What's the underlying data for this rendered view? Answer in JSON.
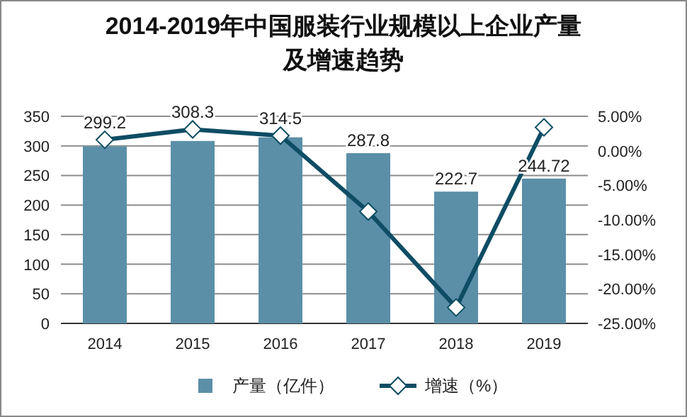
{
  "chart_data": {
    "type": "bar",
    "title": "2014-2019年中国服装行业规模以上企业产量及增速趋势",
    "categories": [
      "2014",
      "2015",
      "2016",
      "2017",
      "2018",
      "2019"
    ],
    "series": [
      {
        "name": "产量（亿件）",
        "color": "#5b8fa8",
        "values": [
          299.2,
          308.3,
          314.5,
          287.8,
          222.7,
          244.72
        ],
        "value_labels": [
          "299.2",
          "308.3",
          "314.5",
          "287.8",
          "222.7",
          "244.72"
        ]
      },
      {
        "name": "增速（%）",
        "type": "line",
        "axis": "y2",
        "color": "#0e4d64",
        "marker": "diamond",
        "values": [
          1.6,
          3.1,
          2.2,
          -8.8,
          -22.7,
          3.4
        ]
      }
    ],
    "ylim": [
      0,
      350
    ],
    "yticks": [
      0,
      50,
      100,
      150,
      200,
      250,
      300,
      350
    ],
    "y2lim": [
      -25,
      5
    ],
    "y2ticks": [
      {
        "value": -25,
        "label": "-25.00%"
      },
      {
        "value": -20,
        "label": "-20.00%"
      },
      {
        "value": -15,
        "label": "-15.00%"
      },
      {
        "value": -10,
        "label": "-10.00%"
      },
      {
        "value": -5,
        "label": "-5.00%"
      },
      {
        "value": 0,
        "label": "0.00%"
      },
      {
        "value": 5,
        "label": "5.00%"
      }
    ],
    "grid": "y",
    "legend": "bottom"
  }
}
